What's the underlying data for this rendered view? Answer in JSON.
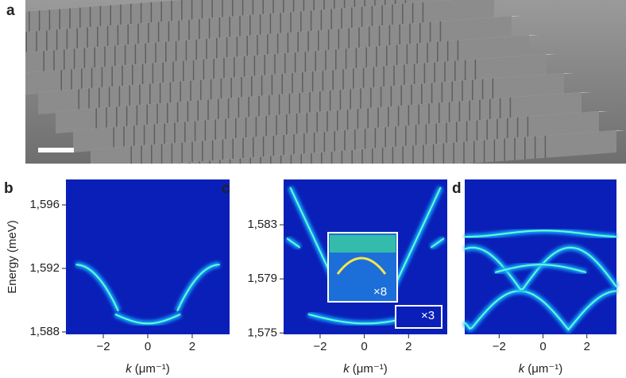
{
  "figure": {
    "panels": [
      {
        "label": "a"
      },
      {
        "label": "b",
        "ylabel": "Energy (meV)",
        "xlabel_var": "k",
        "xlabel_unit": "(μm⁻¹)",
        "xlim": [
          -3.68,
          3.68
        ],
        "ylim": [
          1587.85,
          1597.6
        ],
        "xticks": [
          {
            "value": -2,
            "label": "−2"
          },
          0,
          2
        ],
        "yticks": [
          {
            "value": 1588,
            "label": "1,588"
          },
          {
            "value": 1592,
            "label": "1,592"
          },
          {
            "value": 1596,
            "label": "1,596"
          }
        ]
      },
      {
        "label": "c",
        "xlabel_var": "k",
        "xlabel_unit": "(μm⁻¹)",
        "xlim": [
          -3.65,
          3.75
        ],
        "ylim": [
          1574.9,
          1586.35
        ],
        "xticks": [
          {
            "value": -2,
            "label": "−2"
          },
          0,
          2
        ],
        "yticks": [
          {
            "value": 1575,
            "label": "1,575"
          },
          {
            "value": 1579,
            "label": "1,579"
          },
          {
            "value": 1583,
            "label": "1,583"
          }
        ],
        "insets": [
          "×8",
          "×3"
        ]
      },
      {
        "label": "d",
        "xlabel_var": "k",
        "xlabel_unit": "(μm⁻¹)",
        "xlim": [
          -3.57,
          3.35
        ],
        "xticks": [
          {
            "value": -2,
            "label": "−2"
          },
          0,
          2
        ]
      }
    ]
  }
}
